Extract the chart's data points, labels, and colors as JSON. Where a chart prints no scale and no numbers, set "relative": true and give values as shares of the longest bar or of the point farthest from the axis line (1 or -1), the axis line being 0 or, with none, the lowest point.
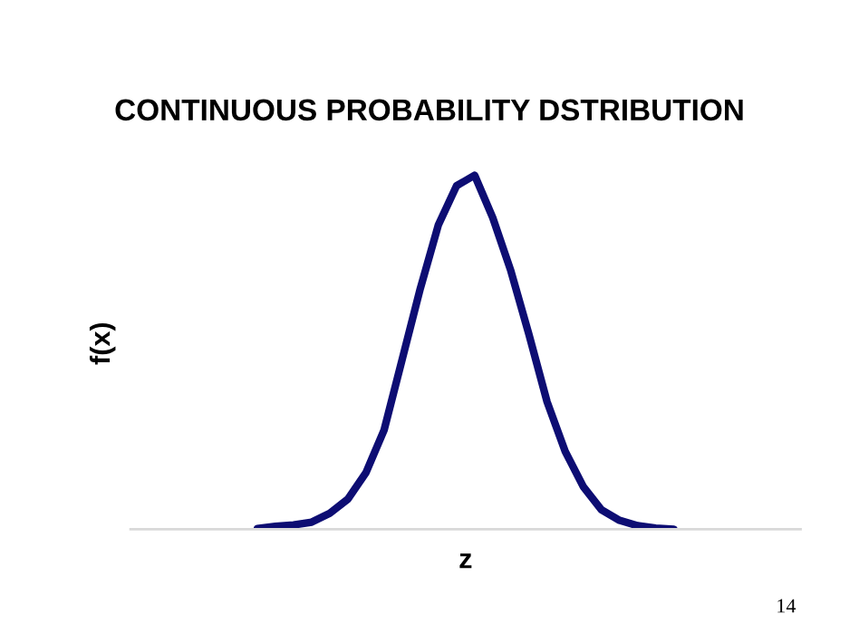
{
  "chart_data": {
    "type": "line",
    "title": "CONTINUOUS PROBABILITY DSTRIBUTION",
    "xlabel": "z",
    "ylabel": "f(x)",
    "relative": true,
    "categories": [
      null,
      null,
      null,
      null,
      null,
      null,
      null,
      null,
      null,
      null,
      null,
      null,
      null,
      null,
      null,
      null,
      null,
      null,
      null,
      null,
      null,
      null,
      null,
      null,
      null,
      null,
      null,
      null,
      null,
      null,
      null,
      null,
      null,
      null,
      null,
      null,
      null,
      null
    ],
    "series": [
      {
        "color": "#0d0d73",
        "values": [
          null,
          null,
          null,
          null,
          null,
          null,
          null,
          0.002,
          0.008,
          0.012,
          0.02,
          0.045,
          0.085,
          0.16,
          0.28,
          0.48,
          0.68,
          0.86,
          0.97,
          1,
          0.88,
          0.73,
          0.55,
          0.36,
          0.22,
          0.12,
          0.055,
          0.025,
          0.01,
          0.003,
          0,
          null,
          null,
          null,
          null,
          null,
          null,
          null
        ]
      }
    ],
    "annotations": [
      "14"
    ],
    "grid": false,
    "legend": false,
    "marker": "none",
    "line_style": "solid"
  }
}
